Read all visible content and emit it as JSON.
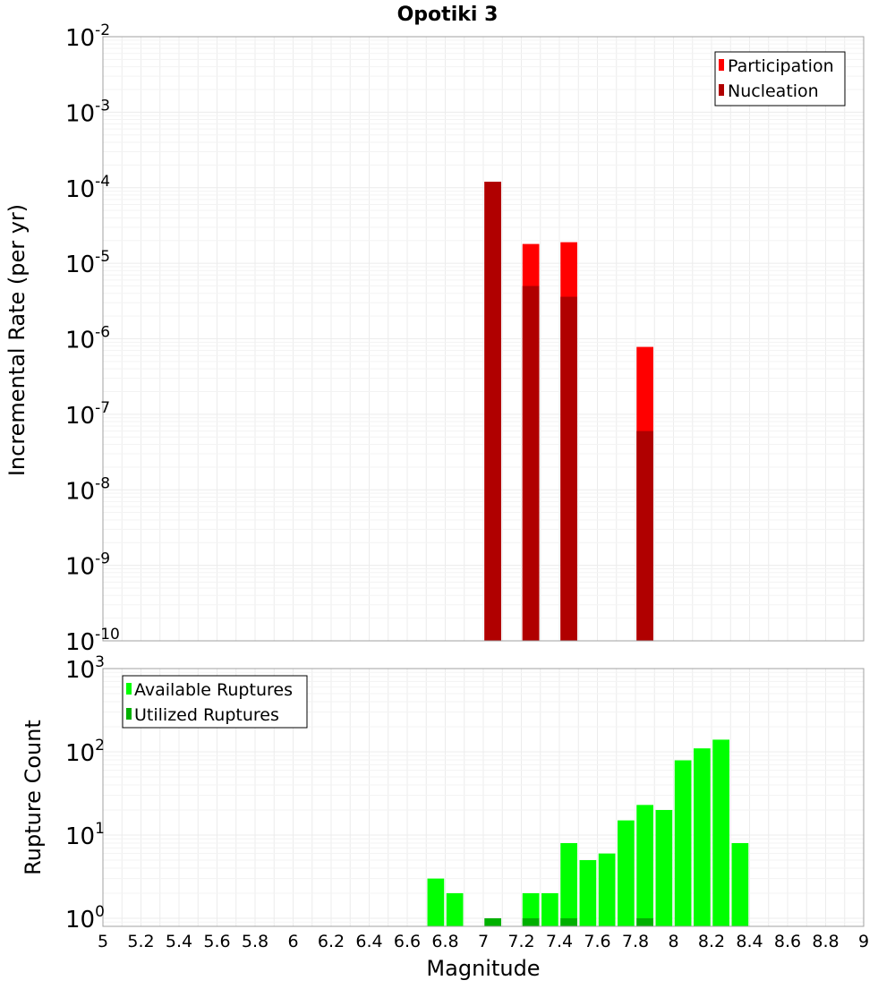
{
  "chart_data": [
    {
      "type": "bar",
      "title": "Opotiki 3",
      "xlabel": "",
      "ylabel": "Incremental Rate (per yr)",
      "yscale": "log",
      "xlim": [
        5,
        9
      ],
      "ylim": [
        1e-10,
        0.01
      ],
      "ytick_labels": [
        {
          "base": "10",
          "exp": "-10",
          "value": 1e-10
        },
        {
          "base": "10",
          "exp": "-9",
          "value": 1e-09
        },
        {
          "base": "10",
          "exp": "-8",
          "value": 1e-08
        },
        {
          "base": "10",
          "exp": "-7",
          "value": 1e-07
        },
        {
          "base": "10",
          "exp": "-6",
          "value": 1e-06
        },
        {
          "base": "10",
          "exp": "-5",
          "value": 1e-05
        },
        {
          "base": "10",
          "exp": "-4",
          "value": 0.0001
        },
        {
          "base": "10",
          "exp": "-3",
          "value": 0.001
        },
        {
          "base": "10",
          "exp": "-2",
          "value": 0.01
        }
      ],
      "legend_position": "top-right",
      "series": [
        {
          "name": "Participation",
          "color": "#ff0000",
          "x": [
            7.05,
            7.25,
            7.45,
            7.85
          ],
          "values": [
            0.00012,
            1.8e-05,
            1.9e-05,
            7.8e-07
          ]
        },
        {
          "name": "Nucleation",
          "color": "#b00000",
          "x": [
            7.05,
            7.25,
            7.45,
            7.85
          ],
          "values": [
            0.00012,
            5e-06,
            3.6e-06,
            6e-08
          ]
        }
      ]
    },
    {
      "type": "bar",
      "title": "",
      "xlabel": "Magnitude",
      "ylabel": "Rupture Count",
      "yscale": "log",
      "xlim": [
        5,
        9
      ],
      "ylim": [
        0.8,
        1000
      ],
      "ytick_labels": [
        {
          "base": "10",
          "exp": "0",
          "value": 1
        },
        {
          "base": "10",
          "exp": "1",
          "value": 10
        },
        {
          "base": "10",
          "exp": "2",
          "value": 100
        },
        {
          "base": "10",
          "exp": "3",
          "value": 1000
        }
      ],
      "xtick_labels": [
        "5",
        "5.2",
        "5.4",
        "5.6",
        "5.8",
        "6",
        "6.2",
        "6.4",
        "6.6",
        "6.8",
        "7",
        "7.2",
        "7.4",
        "7.6",
        "7.8",
        "8",
        "8.2",
        "8.4",
        "8.6",
        "8.8",
        "9"
      ],
      "legend_position": "top-left",
      "series": [
        {
          "name": "Available Ruptures",
          "color": "#00ff00",
          "x": [
            6.75,
            6.85,
            7.25,
            7.35,
            7.45,
            7.55,
            7.65,
            7.75,
            7.85,
            7.95,
            8.05,
            8.15,
            8.25,
            8.35
          ],
          "values": [
            3,
            2,
            2,
            2,
            8,
            5,
            6,
            15,
            23,
            20,
            79,
            110,
            140,
            8
          ]
        },
        {
          "name": "Utilized Ruptures",
          "color": "#00b000",
          "x": [
            7.05,
            7.25,
            7.45,
            7.85
          ],
          "values": [
            1,
            1,
            1,
            1
          ]
        }
      ]
    }
  ]
}
